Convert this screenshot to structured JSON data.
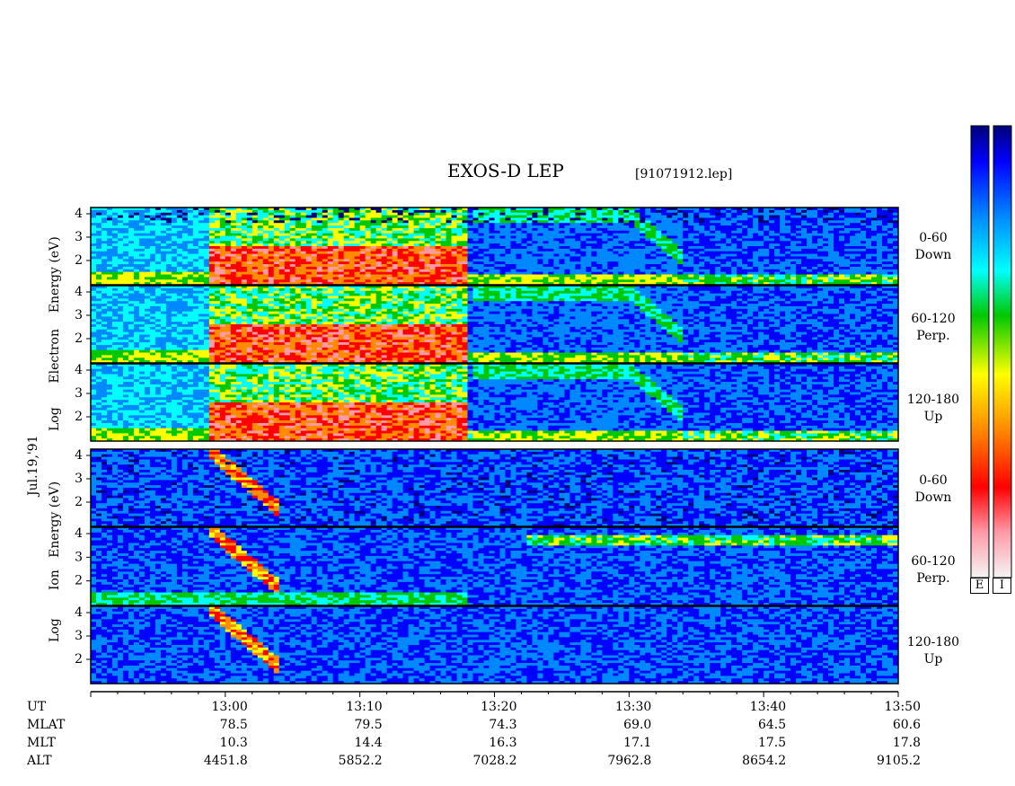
{
  "title": "EXOS-D LEP",
  "file_name": "[91071912.lep]",
  "date_label": "Jul.19,'91",
  "electron_ylabel": [
    "Log",
    "Electron",
    "Energy",
    "(eV)"
  ],
  "ion_ylabel": [
    "Log",
    "Ion",
    "Energy",
    "(eV)"
  ],
  "panels": [
    {
      "species": "Electron",
      "pitch": "0-60",
      "direction": "Down"
    },
    {
      "species": "Electron",
      "pitch": "60-120",
      "direction": "Perp."
    },
    {
      "species": "Electron",
      "pitch": "120-180",
      "direction": "Up"
    },
    {
      "species": "Ion",
      "pitch": "0-60",
      "direction": "Down"
    },
    {
      "species": "Ion",
      "pitch": "60-120",
      "direction": "Perp."
    },
    {
      "species": "Ion",
      "pitch": "120-180",
      "direction": "Up"
    }
  ],
  "colorbar_labels": [
    "E",
    "I"
  ],
  "row_labels": [
    "UT",
    "MLAT",
    "MLT",
    "ALT"
  ],
  "ephemeris": [
    {
      "UT": "13:00",
      "MLAT": "78.5",
      "MLT": "10.3",
      "ALT": "4451.8"
    },
    {
      "UT": "13:10",
      "MLAT": "79.5",
      "MLT": "14.4",
      "ALT": "5852.2"
    },
    {
      "UT": "13:20",
      "MLAT": "74.3",
      "MLT": "16.3",
      "ALT": "7028.2"
    },
    {
      "UT": "13:30",
      "MLAT": "69.0",
      "MLT": "17.1",
      "ALT": "7962.8"
    },
    {
      "UT": "13:40",
      "MLAT": "64.5",
      "MLT": "17.5",
      "ALT": "8654.2"
    },
    {
      "UT": "13:50",
      "MLAT": "60.6",
      "MLT": "17.8",
      "ALT": "9105.2"
    }
  ],
  "chart_data": {
    "type": "heatmap",
    "title": "EXOS-D LEP",
    "x_axis": {
      "unit": "UT",
      "range": [
        "12:50",
        "13:50"
      ],
      "tick_labels": [
        "13:00",
        "13:10",
        "13:20",
        "13:30",
        "13:40",
        "13:50"
      ]
    },
    "y_axis": {
      "label": "Log Energy (eV)",
      "range": [
        1,
        4
      ],
      "tick_labels": [
        "2",
        "3",
        "4"
      ]
    },
    "panels": [
      "Electron 0-60 Down",
      "Electron 60-120 Perp.",
      "Electron 120-180 Up",
      "Ion 0-60 Down",
      "Ion 60-120 Perp.",
      "Ion 120-180 Up"
    ],
    "colorscale": [
      "#f4f4f4",
      "#ff9aa8",
      "#ff0000",
      "#ff8c00",
      "#ffff00",
      "#00c800",
      "#00ffff",
      "#0088ff",
      "#0000ff",
      "#00007a"
    ]
  }
}
